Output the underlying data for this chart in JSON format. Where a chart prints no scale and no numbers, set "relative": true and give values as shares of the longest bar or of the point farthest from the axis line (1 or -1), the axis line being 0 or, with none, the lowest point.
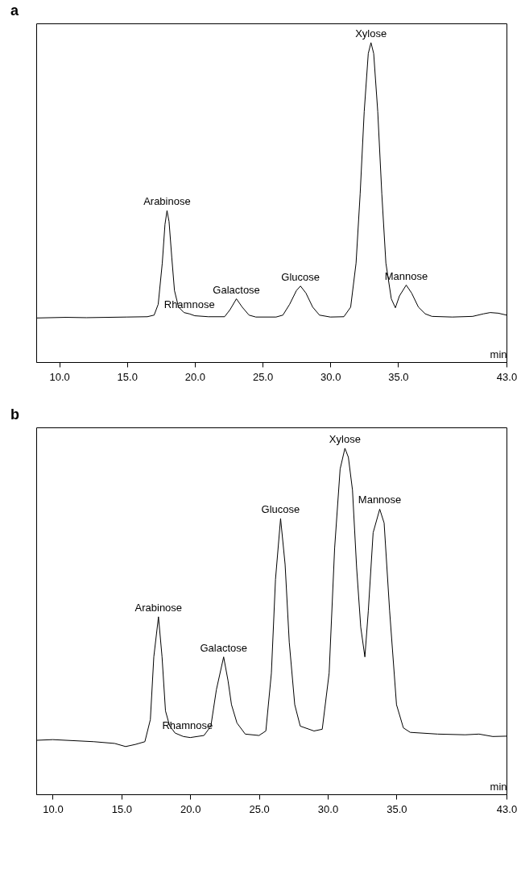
{
  "chart_data": [
    {
      "type": "line",
      "title": "a",
      "xlabel": "min",
      "relative": true,
      "tick_labels": "x",
      "color": "#000000",
      "x": [
        8.3,
        10.5,
        12,
        15,
        16.5,
        17.0,
        17.3,
        17.6,
        17.8,
        17.95,
        18.1,
        18.3,
        18.5,
        18.8,
        19.2,
        19.6,
        20,
        21,
        22.2,
        22.6,
        23.07,
        23.5,
        24.0,
        24.5,
        26,
        26.5,
        27.0,
        27.5,
        27.8,
        28.2,
        28.7,
        29.2,
        30,
        31,
        31.5,
        31.9,
        32.2,
        32.5,
        32.8,
        33.0,
        33.2,
        33.5,
        33.8,
        34.1,
        34.5,
        34.8,
        35.1,
        35.6,
        36.0,
        36.5,
        37,
        37.5,
        39,
        40.5,
        41.3,
        41.8,
        42.4,
        43
      ],
      "values": [
        0.138,
        0.14,
        0.139,
        0.141,
        0.142,
        0.147,
        0.181,
        0.31,
        0.431,
        0.474,
        0.44,
        0.328,
        0.224,
        0.172,
        0.155,
        0.151,
        0.145,
        0.142,
        0.142,
        0.164,
        0.198,
        0.172,
        0.147,
        0.141,
        0.141,
        0.147,
        0.181,
        0.224,
        0.238,
        0.216,
        0.172,
        0.147,
        0.141,
        0.142,
        0.172,
        0.31,
        0.526,
        0.784,
        0.966,
        1,
        0.966,
        0.784,
        0.526,
        0.31,
        0.198,
        0.17,
        0.207,
        0.241,
        0.216,
        0.172,
        0.151,
        0.143,
        0.141,
        0.143,
        0.151,
        0.155,
        0.153,
        0.147
      ],
      "xlim": [
        8.3,
        43.0
      ],
      "xticks": [
        {
          "value": 10,
          "label": "10.0"
        },
        {
          "value": 15,
          "label": "15.0"
        },
        {
          "value": 20,
          "label": "20.0"
        },
        {
          "value": 25,
          "label": "25.0"
        },
        {
          "value": 30,
          "label": "30.0"
        },
        {
          "value": 35,
          "label": "35.0"
        },
        {
          "value": 43,
          "label": "43.0"
        }
      ],
      "annotations": [
        {
          "text": "Arabinose",
          "x": 17.95,
          "y": 0.474
        },
        {
          "text": "Rhamnose",
          "x": 19.6,
          "y": 0.151
        },
        {
          "text": "Galactose",
          "x": 23.07,
          "y": 0.198
        },
        {
          "text": "Glucose",
          "x": 27.8,
          "y": 0.238
        },
        {
          "text": "Xylose",
          "x": 33.0,
          "y": 1
        },
        {
          "text": "Mannose",
          "x": 35.6,
          "y": 0.241
        }
      ]
    },
    {
      "type": "line",
      "title": "b",
      "xlabel": "min",
      "relative": true,
      "tick_labels": "x",
      "color": "#000000",
      "x": [
        8.8,
        10,
        13,
        14.5,
        15.3,
        16,
        16.7,
        17.1,
        17.35,
        17.69,
        17.95,
        18.2,
        18.5,
        18.9,
        19.5,
        20,
        21,
        21.5,
        21.9,
        22.43,
        22.75,
        23.0,
        23.4,
        24,
        25,
        25.5,
        25.9,
        26.2,
        26.57,
        26.9,
        27.2,
        27.6,
        28,
        29,
        29.6,
        30.1,
        30.5,
        30.9,
        31.25,
        31.5,
        31.8,
        32.1,
        32.4,
        32.7,
        32.95,
        33.3,
        33.78,
        34.1,
        34.5,
        35.0,
        35.5,
        36,
        38,
        40,
        41,
        42,
        43
      ],
      "values": [
        0.156,
        0.158,
        0.152,
        0.147,
        0.138,
        0.144,
        0.152,
        0.216,
        0.397,
        0.513,
        0.397,
        0.241,
        0.198,
        0.177,
        0.167,
        0.164,
        0.17,
        0.197,
        0.302,
        0.397,
        0.328,
        0.259,
        0.206,
        0.174,
        0.17,
        0.183,
        0.35,
        0.621,
        0.797,
        0.664,
        0.44,
        0.259,
        0.197,
        0.183,
        0.188,
        0.35,
        0.711,
        0.94,
        1,
        0.974,
        0.879,
        0.655,
        0.483,
        0.397,
        0.53,
        0.756,
        0.824,
        0.784,
        0.53,
        0.259,
        0.192,
        0.179,
        0.174,
        0.172,
        0.174,
        0.167,
        0.168
      ],
      "xlim": [
        8.8,
        43.0
      ],
      "xticks": [
        {
          "value": 10,
          "label": "10.0"
        },
        {
          "value": 15,
          "label": "15.0"
        },
        {
          "value": 20,
          "label": "20.0"
        },
        {
          "value": 25,
          "label": "25.0"
        },
        {
          "value": 30,
          "label": "30.0"
        },
        {
          "value": 35,
          "label": "35.0"
        },
        {
          "value": 43,
          "label": "43.0"
        }
      ],
      "annotations": [
        {
          "text": "Arabinose",
          "x": 17.69,
          "y": 0.513
        },
        {
          "text": "Rhamnose",
          "x": 19.8,
          "y": 0.172
        },
        {
          "text": "Galactose",
          "x": 22.43,
          "y": 0.397
        },
        {
          "text": "Glucose",
          "x": 26.57,
          "y": 0.797
        },
        {
          "text": "Xylose",
          "x": 31.25,
          "y": 1
        },
        {
          "text": "Mannose",
          "x": 33.78,
          "y": 0.824
        }
      ]
    }
  ]
}
